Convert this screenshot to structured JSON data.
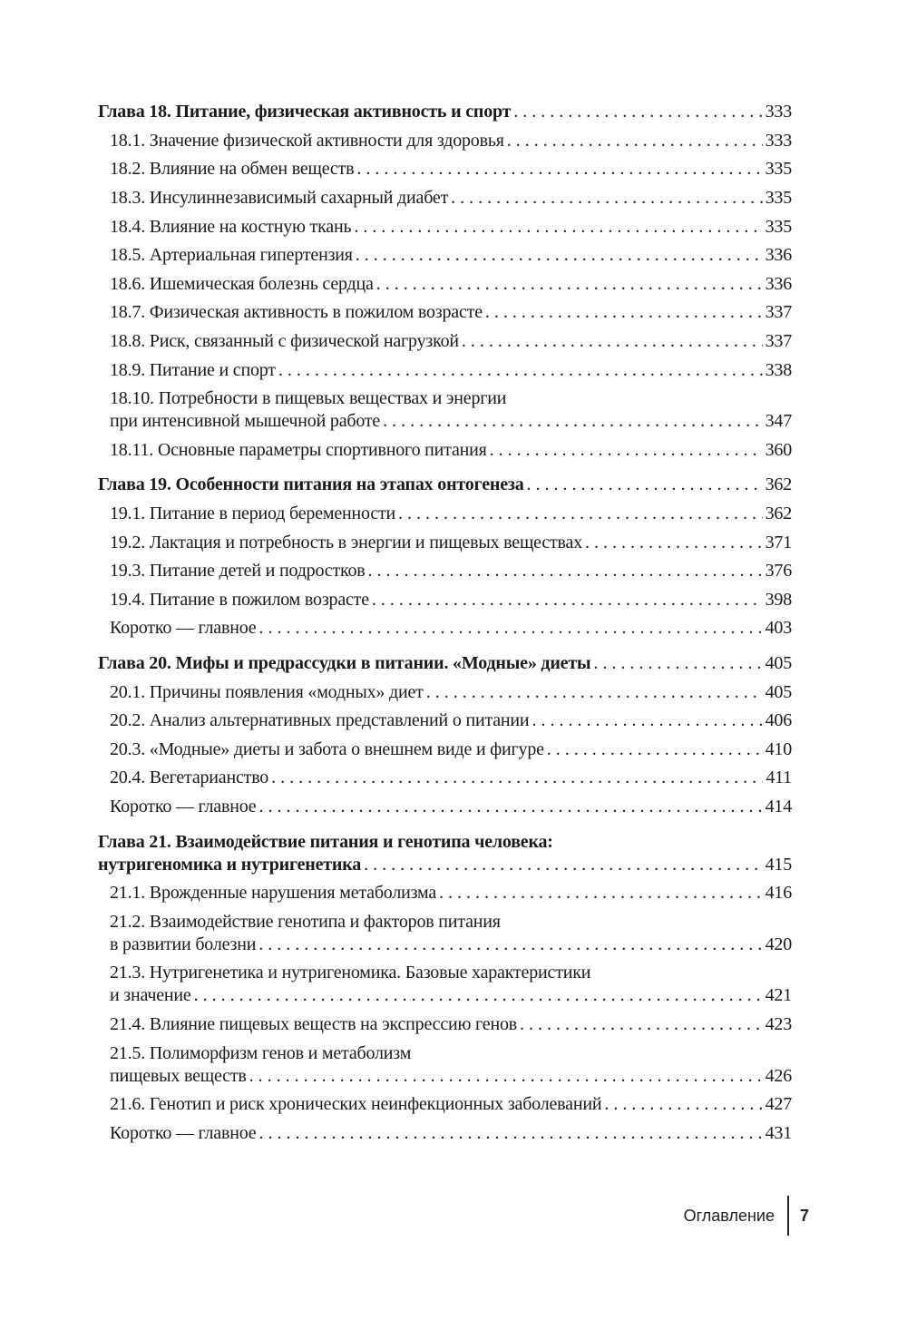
{
  "toc": [
    {
      "type": "chapter",
      "lines": [
        "Глава 18. Питание, физическая активность и спорт"
      ],
      "page": "333"
    },
    {
      "type": "section",
      "lines": [
        "18.1. Значение физической активности для здоровья"
      ],
      "page": "333"
    },
    {
      "type": "section",
      "lines": [
        "18.2. Влияние на обмен веществ"
      ],
      "page": "335"
    },
    {
      "type": "section",
      "lines": [
        "18.3. Инсулиннезависимый сахарный диабет"
      ],
      "page": "335"
    },
    {
      "type": "section",
      "lines": [
        "18.4. Влияние на костную ткань"
      ],
      "page": "335"
    },
    {
      "type": "section",
      "lines": [
        "18.5. Артериальная гипертензия"
      ],
      "page": "336"
    },
    {
      "type": "section",
      "lines": [
        "18.6. Ишемическая болезнь сердца"
      ],
      "page": "336"
    },
    {
      "type": "section",
      "lines": [
        "18.7. Физическая активность в пожилом возрасте"
      ],
      "page": "337"
    },
    {
      "type": "section",
      "lines": [
        "18.8. Риск, связанный с физической нагрузкой"
      ],
      "page": "337"
    },
    {
      "type": "section",
      "lines": [
        "18.9. Питание и спорт"
      ],
      "page": "338"
    },
    {
      "type": "section",
      "lines": [
        "18.10. Потребности в пищевых веществах и энергии",
        "при интенсивной мышечной работе"
      ],
      "page": "347"
    },
    {
      "type": "section",
      "lines": [
        "18.11. Основные параметры спортивного питания"
      ],
      "page": "360"
    },
    {
      "type": "chapter",
      "lines": [
        "Глава 19. Особенности питания на этапах онтогенеза"
      ],
      "page": "362"
    },
    {
      "type": "section",
      "lines": [
        "19.1. Питание в период беременности"
      ],
      "page": "362"
    },
    {
      "type": "section",
      "lines": [
        "19.2. Лактация и потребность в энергии и пищевых веществах"
      ],
      "page": "371"
    },
    {
      "type": "section",
      "lines": [
        "19.3. Питание детей и подростков"
      ],
      "page": "376"
    },
    {
      "type": "section",
      "lines": [
        "19.4. Питание в пожилом возрасте"
      ],
      "page": "398"
    },
    {
      "type": "section",
      "lines": [
        "Коротко — главное"
      ],
      "page": "403"
    },
    {
      "type": "chapter",
      "lines": [
        "Глава 20. Мифы и предрассудки в питании. «Модные» диеты"
      ],
      "page": "405"
    },
    {
      "type": "section",
      "lines": [
        "20.1. Причины появления «модных» диет"
      ],
      "page": "405"
    },
    {
      "type": "section",
      "lines": [
        "20.2. Анализ альтернативных представлений о питании"
      ],
      "page": "406"
    },
    {
      "type": "section",
      "lines": [
        "20.3. «Модные» диеты и забота о внешнем виде и фигуре"
      ],
      "page": "410"
    },
    {
      "type": "section",
      "lines": [
        "20.4. Вегетарианство"
      ],
      "page": "411"
    },
    {
      "type": "section",
      "lines": [
        "Коротко — главное"
      ],
      "page": "414"
    },
    {
      "type": "chapter",
      "lines": [
        "Глава 21. Взаимодействие питания и генотипа человека:",
        "нутригеномика и нутригенетика"
      ],
      "page": "415"
    },
    {
      "type": "section",
      "lines": [
        "21.1. Врожденные нарушения метаболизма"
      ],
      "page": "416"
    },
    {
      "type": "section",
      "lines": [
        "21.2. Взаимодействие генотипа и факторов питания",
        "в развитии болезни"
      ],
      "page": "420"
    },
    {
      "type": "section",
      "lines": [
        "21.3. Нутригенетика и нутригеномика. Базовые характеристики",
        "и значение"
      ],
      "page": "421"
    },
    {
      "type": "section",
      "lines": [
        "21.4. Влияние пищевых веществ на экспрессию генов"
      ],
      "page": "423"
    },
    {
      "type": "section",
      "lines": [
        "21.5. Полиморфизм генов и метаболизм",
        "пищевых веществ"
      ],
      "page": "426"
    },
    {
      "type": "section",
      "lines": [
        "21.6. Генотип и риск хронических неинфекционных заболеваний"
      ],
      "page": "427"
    },
    {
      "type": "section",
      "lines": [
        "Коротко — главное"
      ],
      "page": "431"
    }
  ],
  "footer": {
    "section_title": "Оглавление",
    "page_number": "7"
  }
}
